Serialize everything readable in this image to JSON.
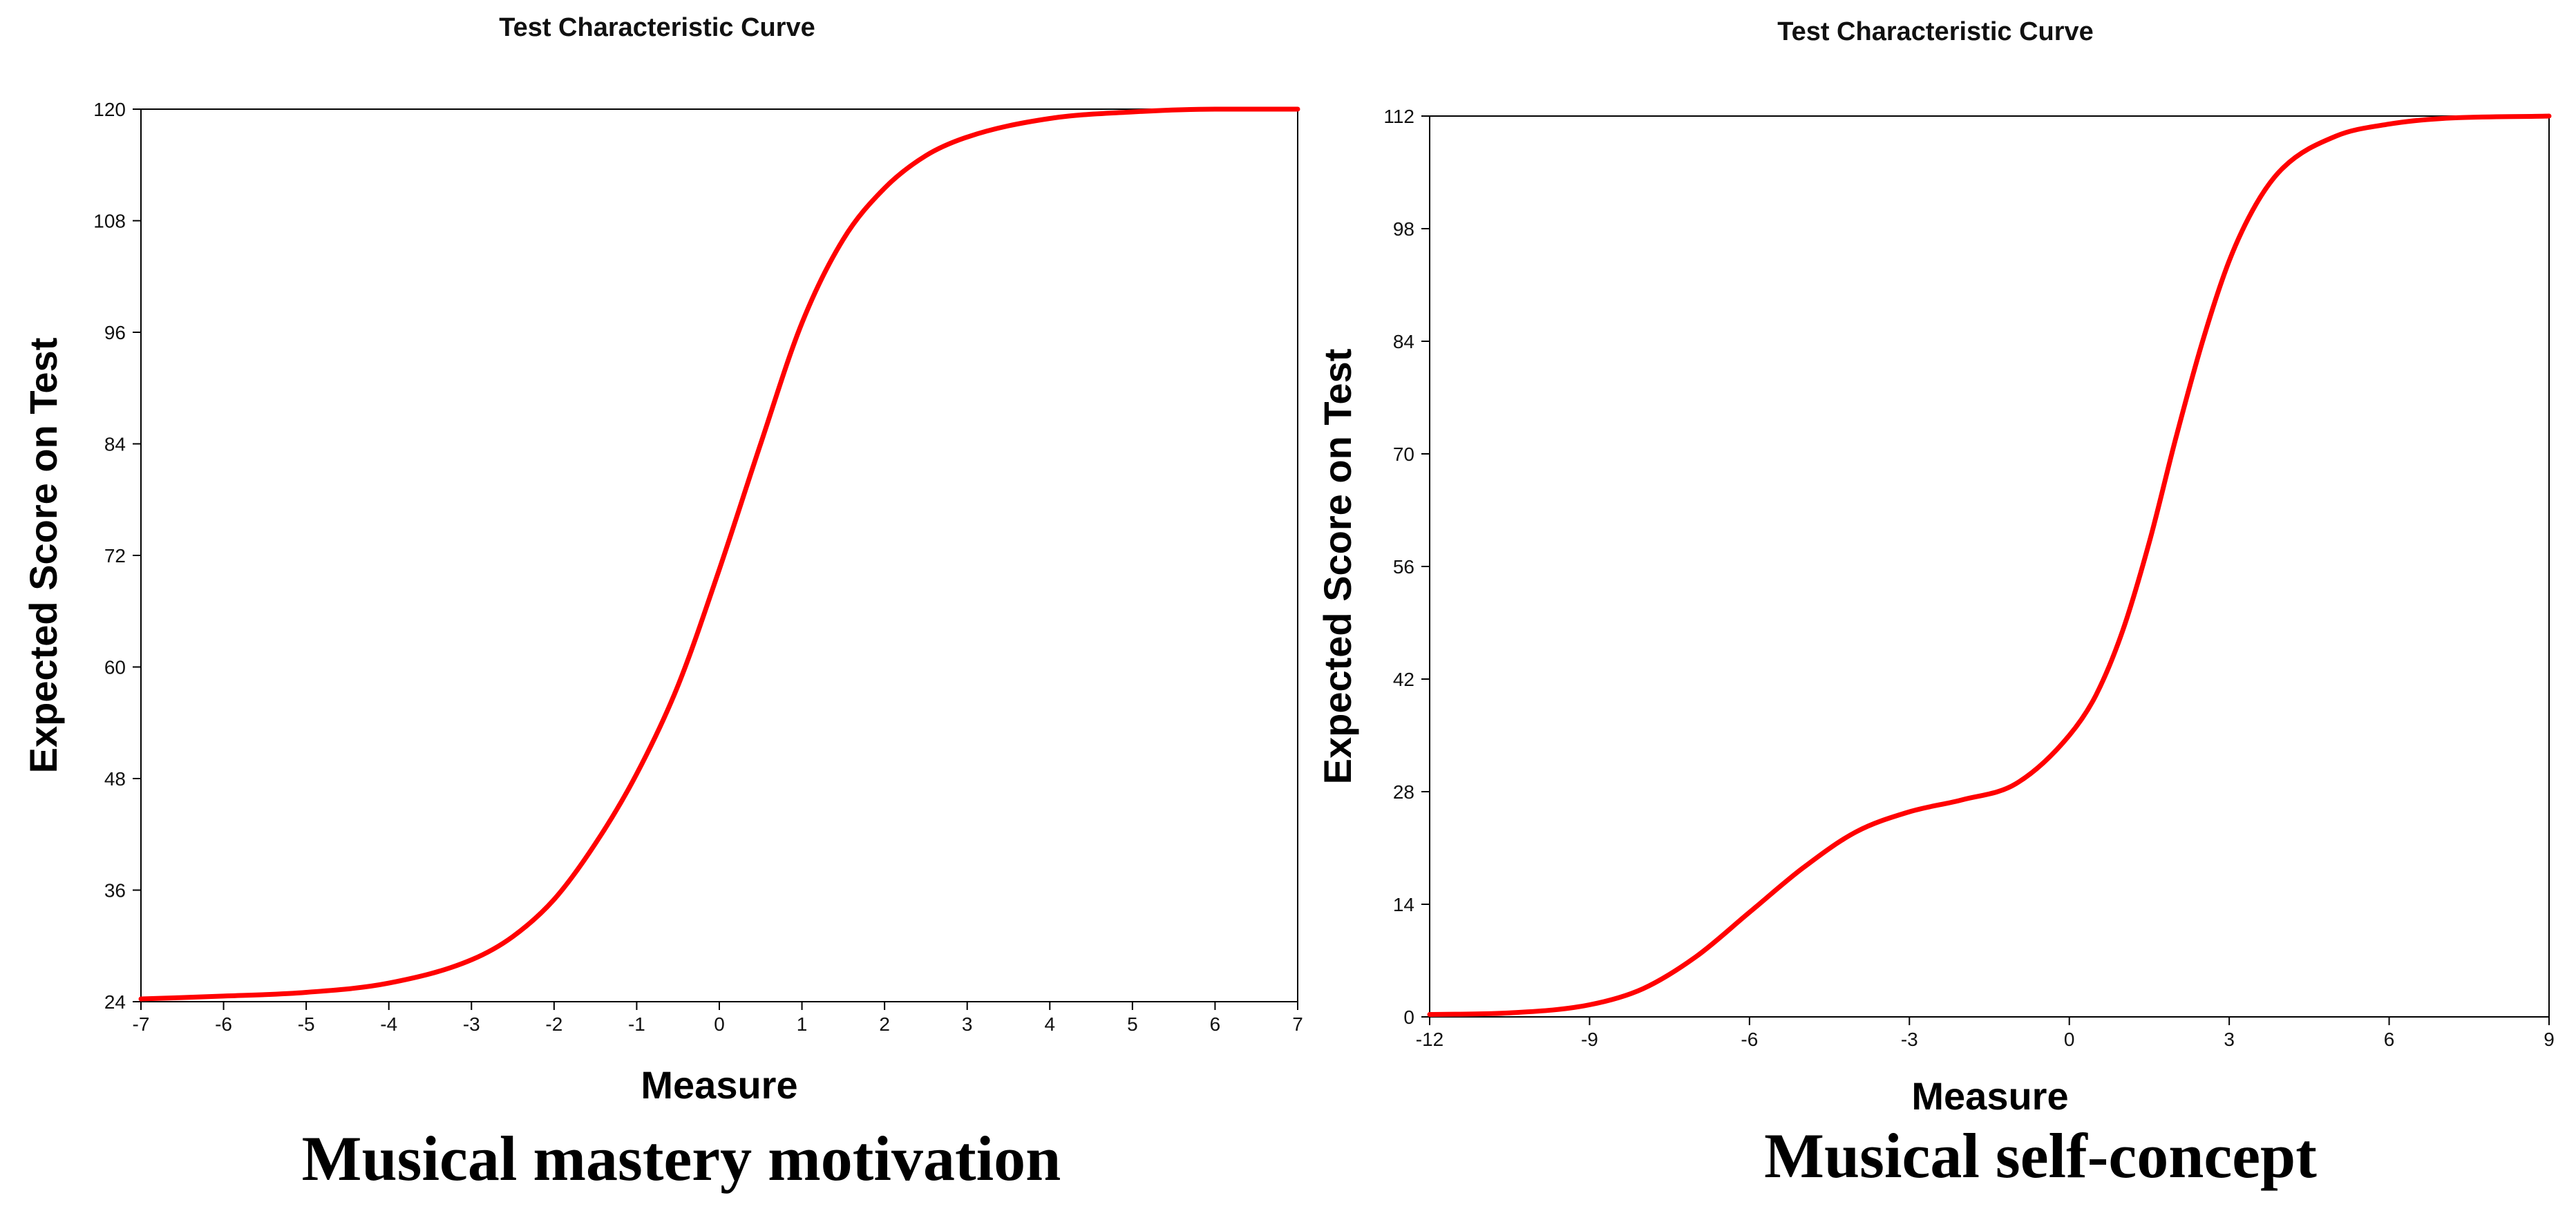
{
  "curve_color": "#ff0000",
  "chart_data": [
    {
      "type": "line",
      "title": "Test Characteristic Curve",
      "xlabel": "Measure",
      "ylabel": "Expected Score on Test",
      "caption": "Musical mastery motivation",
      "xlim": [
        -7,
        7
      ],
      "ylim": [
        24,
        120
      ],
      "xticks": [
        -7,
        -6,
        -5,
        -4,
        -3,
        -2,
        -1,
        0,
        1,
        2,
        3,
        4,
        5,
        6,
        7
      ],
      "yticks": [
        24,
        36,
        48,
        60,
        72,
        84,
        96,
        108,
        120
      ],
      "grid": false,
      "series": [
        {
          "x": [
            -7,
            -6,
            -5,
            -4,
            -3,
            -2.5,
            -2,
            -1.5,
            -1,
            -0.5,
            0,
            0.5,
            1,
            1.5,
            2,
            2.5,
            3,
            4,
            5,
            6,
            7
          ],
          "y": [
            24.3,
            24.6,
            25.0,
            26.0,
            28.5,
            31.0,
            35.0,
            41.0,
            48.5,
            58.0,
            70.5,
            84.0,
            97.0,
            106.0,
            111.5,
            115.0,
            117.0,
            119.0,
            119.7,
            120.0,
            120.0
          ]
        }
      ]
    },
    {
      "type": "line",
      "title": "Test Characteristic Curve",
      "xlabel": "Measure",
      "ylabel": "Expected Score on Test",
      "caption": "Musical self-concept",
      "xlim": [
        -12,
        9
      ],
      "ylim": [
        0,
        112
      ],
      "xticks": [
        -12,
        -9,
        -6,
        -3,
        0,
        3,
        6,
        9
      ],
      "yticks": [
        0,
        14,
        28,
        42,
        56,
        70,
        84,
        98,
        112
      ],
      "grid": false,
      "series": [
        {
          "x": [
            -12,
            -10.5,
            -9,
            -8,
            -7,
            -6,
            -5,
            -4,
            -3,
            -2,
            -1,
            0,
            0.5,
            1,
            1.5,
            2,
            2.5,
            3,
            3.5,
            4,
            5,
            6,
            7,
            9
          ],
          "y": [
            0.3,
            0.5,
            1.5,
            3.5,
            7.5,
            13.0,
            18.5,
            23.0,
            25.5,
            27.0,
            29.0,
            35.0,
            40.0,
            48.0,
            59.0,
            72.0,
            84.0,
            94.0,
            101.0,
            105.5,
            109.5,
            111.0,
            111.7,
            112.0
          ]
        }
      ]
    }
  ]
}
